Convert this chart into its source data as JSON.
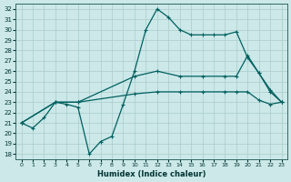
{
  "xlabel": "Humidex (Indice chaleur)",
  "bg_color": "#cce8e8",
  "grid_color": "#aacccc",
  "line_color": "#006060",
  "xlim": [
    -0.5,
    23.5
  ],
  "ylim": [
    17.5,
    32.5
  ],
  "xticks": [
    0,
    1,
    2,
    3,
    4,
    5,
    6,
    7,
    8,
    9,
    10,
    11,
    12,
    13,
    14,
    15,
    16,
    17,
    18,
    19,
    20,
    21,
    22,
    23
  ],
  "yticks": [
    18,
    19,
    20,
    21,
    22,
    23,
    24,
    25,
    26,
    27,
    28,
    29,
    30,
    31,
    32
  ],
  "line1_x": [
    0,
    1,
    2,
    3,
    4,
    5,
    6,
    7,
    8,
    9,
    10,
    11,
    12,
    13,
    14,
    15,
    16,
    17,
    18,
    19,
    20,
    21,
    22,
    23
  ],
  "line1_y": [
    21,
    20.5,
    21.5,
    23,
    22.8,
    22.5,
    18.0,
    19.2,
    19.7,
    22.8,
    26.0,
    30.0,
    32.0,
    31.2,
    30.0,
    29.5,
    29.5,
    29.5,
    29.5,
    29.8,
    27.3,
    25.8,
    24.0,
    23.0
  ],
  "line2_x": [
    0,
    3,
    5,
    10,
    12,
    14,
    16,
    18,
    19,
    20,
    21,
    22,
    23
  ],
  "line2_y": [
    21,
    23,
    23,
    25.5,
    26.0,
    25.5,
    25.5,
    25.5,
    25.5,
    27.5,
    25.8,
    24.2,
    23.0
  ],
  "line3_x": [
    0,
    3,
    5,
    10,
    12,
    14,
    16,
    18,
    19,
    20,
    21,
    22,
    23
  ],
  "line3_y": [
    21,
    23,
    23,
    23.8,
    24.0,
    24.0,
    24.0,
    24.0,
    24.0,
    24.0,
    23.2,
    22.8,
    23.0
  ]
}
